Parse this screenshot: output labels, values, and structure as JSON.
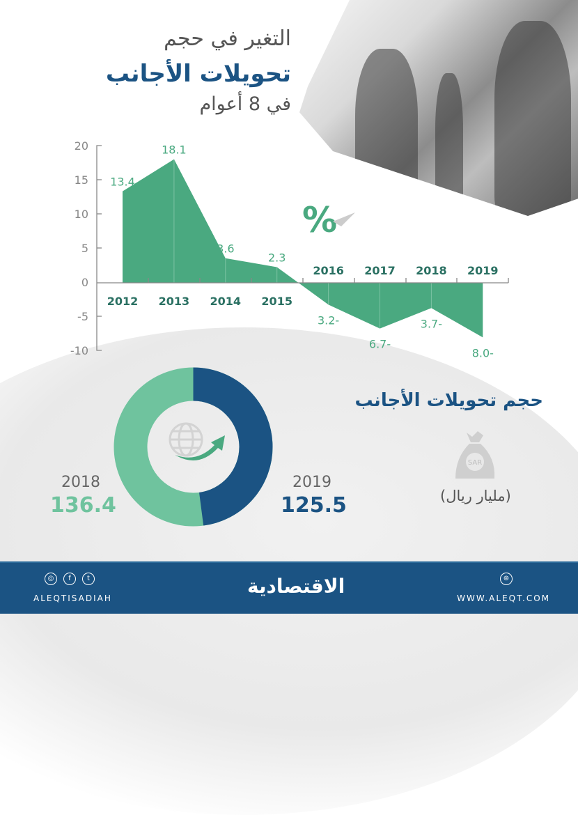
{
  "header": {
    "title_line1": "التغير في حجم",
    "title_line2": "تحويلات الأجانب",
    "title_line3": "في 8 أعوام"
  },
  "chart_data": [
    {
      "type": "area",
      "title": "التغير في حجم تحويلات الأجانب في 8 أعوام",
      "unit_symbol": "%",
      "categories": [
        "2012",
        "2013",
        "2014",
        "2015",
        "2016",
        "2017",
        "2018",
        "2019"
      ],
      "values": [
        13.4,
        18.1,
        3.6,
        2.3,
        -3.2,
        -6.7,
        -3.7,
        -8.0
      ],
      "value_labels": [
        "13.4",
        "18.1",
        "3.6",
        "2.3",
        "3.2-",
        "6.7-",
        "3.7-",
        "8.0-"
      ],
      "yticks": [
        "20",
        "15",
        "10",
        "5",
        "0",
        "-5",
        "-10"
      ],
      "ylim": [
        -10,
        20
      ],
      "grid": false,
      "color": "#4aa980"
    },
    {
      "type": "pie",
      "title": "حجم تحويلات الأجانب",
      "unit": "(مليار ريال)",
      "categories": [
        "2018",
        "2019"
      ],
      "values": [
        136.4,
        125.5
      ],
      "value_labels": [
        "136.4",
        "125.5"
      ],
      "colors": [
        "#6fc39e",
        "#1b5383"
      ]
    }
  ],
  "donut": {
    "year_2018": "2018",
    "value_2018": "136.4",
    "year_2019": "2019",
    "value_2019": "125.5"
  },
  "volume_section": {
    "title": "حجم تحويلات الأجانب",
    "unit": "(مليار ريال)",
    "bag_label": "SAR"
  },
  "percent_symbol": "%",
  "footer": {
    "handle": "ALEQTISADIAH",
    "logo": "الاقتصادية",
    "website": "WWW.ALEQT.COM",
    "social_icons": [
      "instagram-icon",
      "facebook-icon",
      "twitter-icon"
    ],
    "social_glyphs": {
      "instagram": "◎",
      "facebook": "f",
      "twitter": "t",
      "web": "⊛"
    }
  },
  "colors": {
    "green": "#4aa980",
    "light_green": "#6fc39e",
    "navy": "#1b5383",
    "grey_text": "#666666"
  }
}
